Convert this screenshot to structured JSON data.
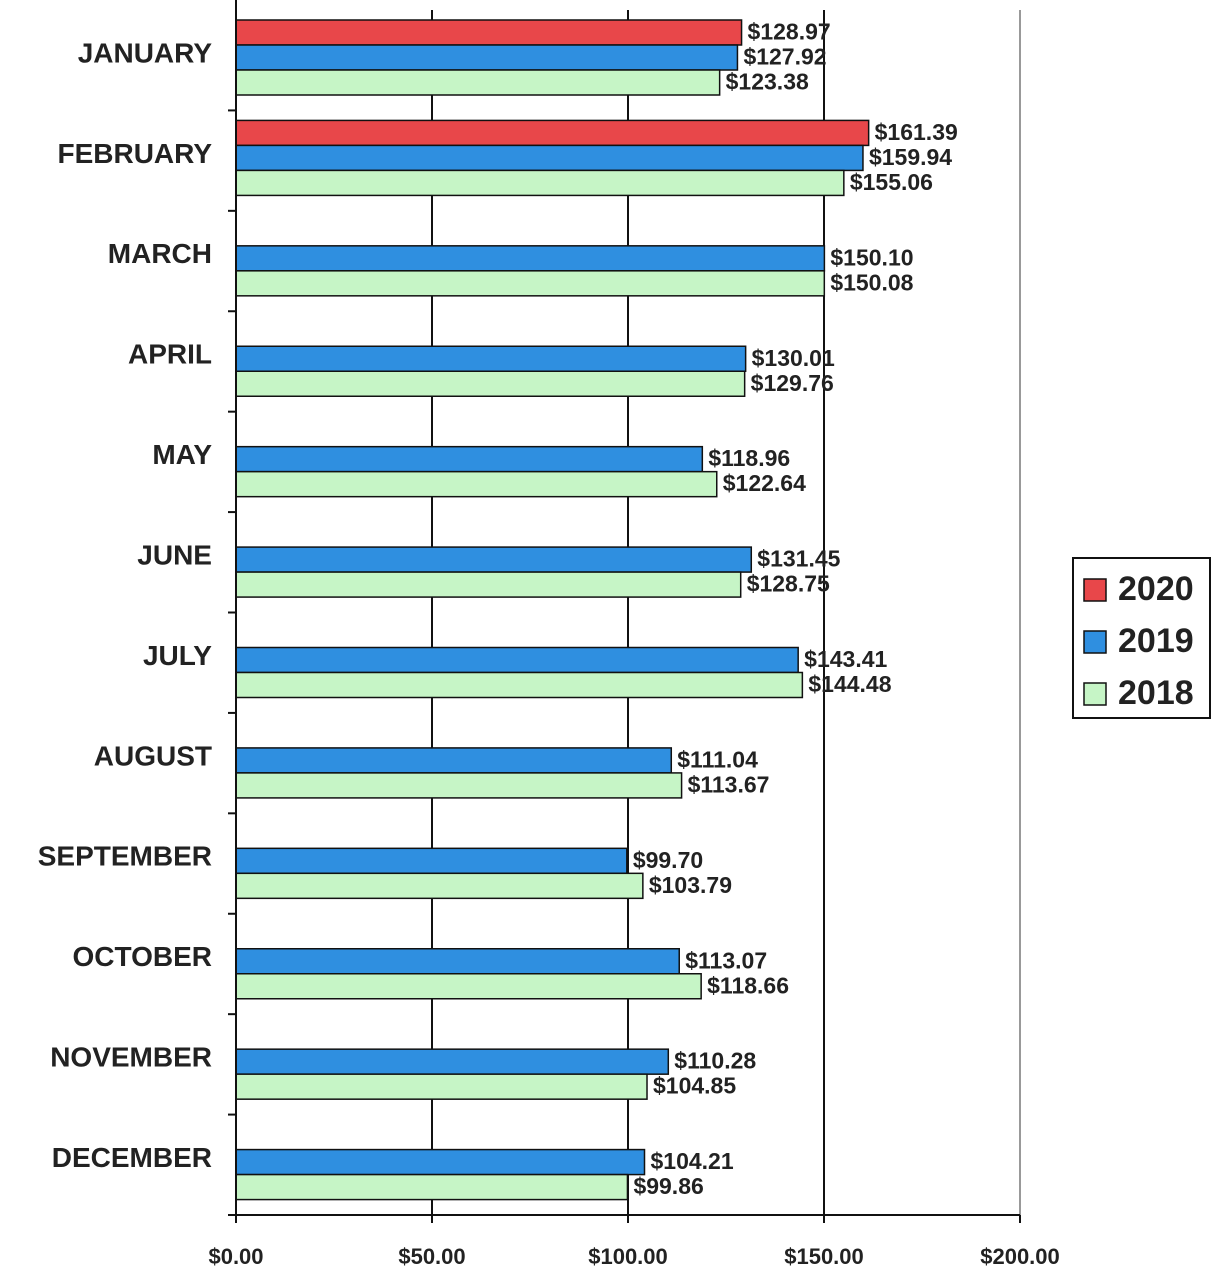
{
  "chart_data": {
    "type": "bar",
    "orientation": "horizontal",
    "categories": [
      "JANUARY",
      "FEBRUARY",
      "MARCH",
      "APRIL",
      "MAY",
      "JUNE",
      "JULY",
      "AUGUST",
      "SEPTEMBER",
      "OCTOBER",
      "NOVEMBER",
      "DECEMBER"
    ],
    "series": [
      {
        "name": "2020",
        "color": "#e8474a",
        "values": [
          128.97,
          161.39,
          null,
          null,
          null,
          null,
          null,
          null,
          null,
          null,
          null,
          null
        ],
        "value_labels": [
          "$128.97",
          "$161.39",
          null,
          null,
          null,
          null,
          null,
          null,
          null,
          null,
          null,
          null
        ]
      },
      {
        "name": "2019",
        "color": "#2f8fe0",
        "values": [
          127.92,
          159.94,
          150.1,
          130.01,
          118.96,
          131.45,
          143.41,
          111.04,
          99.7,
          113.07,
          110.28,
          104.21
        ],
        "value_labels": [
          "$127.92",
          "$159.94",
          "$150.10",
          "$130.01",
          "$118.96",
          "$131.45",
          "$143.41",
          "$111.04",
          "$99.70",
          "$113.07",
          "$110.28",
          "$104.21"
        ]
      },
      {
        "name": "2018",
        "color": "#c6f5c6",
        "values": [
          123.38,
          155.06,
          150.08,
          129.76,
          122.64,
          128.75,
          144.48,
          113.67,
          103.79,
          118.66,
          104.85,
          99.86
        ],
        "value_labels": [
          "$123.38",
          "$155.06",
          "$150.08",
          "$129.76",
          "$122.64",
          "$128.75",
          "$144.48",
          "$113.67",
          "$103.79",
          "$118.66",
          "$104.85",
          "$99.86"
        ]
      }
    ],
    "xlim": [
      0,
      200
    ],
    "xticks": [
      {
        "value": 0,
        "label": "$0.00"
      },
      {
        "value": 50,
        "label": "$50.00"
      },
      {
        "value": 100,
        "label": "$100.00"
      },
      {
        "value": 150,
        "label": "$150.00"
      },
      {
        "value": 200,
        "label": "$200.00"
      }
    ],
    "grid": true,
    "legend": "right"
  }
}
